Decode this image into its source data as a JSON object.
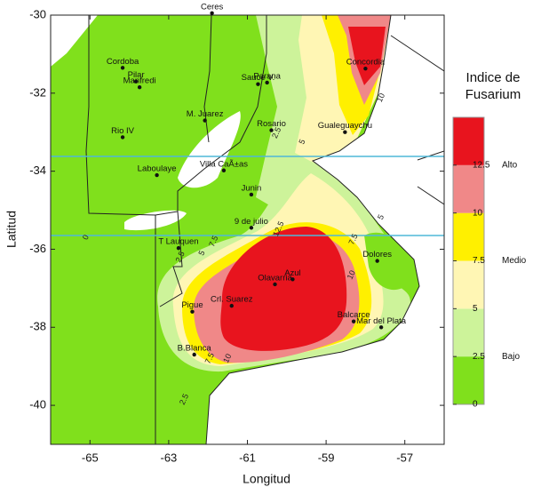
{
  "chart_data": {
    "type": "map",
    "xlabel": "Longitud",
    "ylabel": "Latitud",
    "xlim": [
      -66,
      -56
    ],
    "xticks": [
      -65,
      -63,
      -61,
      -59,
      -57
    ],
    "ylim": [
      -41,
      -30
    ],
    "yticks": [
      -30,
      -32,
      -34,
      -36,
      -38,
      -40
    ],
    "cities": [
      {
        "name": "Ceres",
        "lon": -61.9,
        "lat": -29.95
      },
      {
        "name": "Cordoba",
        "lon": -64.17,
        "lat": -31.35
      },
      {
        "name": "Pilar",
        "lon": -63.83,
        "lat": -31.7
      },
      {
        "name": "Manfredi",
        "lon": -63.74,
        "lat": -31.85
      },
      {
        "name": "Rio IV",
        "lon": -64.17,
        "lat": -33.13
      },
      {
        "name": "M. Juarez",
        "lon": -62.08,
        "lat": -32.7
      },
      {
        "name": "Sauce V.",
        "lon": -60.73,
        "lat": -31.77
      },
      {
        "name": "Parana",
        "lon": -60.5,
        "lat": -31.73
      },
      {
        "name": "Rosario",
        "lon": -60.39,
        "lat": -32.95
      },
      {
        "name": "Concordia",
        "lon": -58.0,
        "lat": -31.37
      },
      {
        "name": "Gualeguaychu",
        "lon": -58.52,
        "lat": -33.0
      },
      {
        "name": "Villa CaÃ±as",
        "lon": -61.6,
        "lat": -33.98
      },
      {
        "name": "Laboulaye",
        "lon": -63.3,
        "lat": -34.1
      },
      {
        "name": "Junin",
        "lon": -60.9,
        "lat": -34.6
      },
      {
        "name": "9 de julio",
        "lon": -60.9,
        "lat": -35.45
      },
      {
        "name": "T Lauquen",
        "lon": -62.75,
        "lat": -35.97
      },
      {
        "name": "Dolores",
        "lon": -57.7,
        "lat": -36.3
      },
      {
        "name": "Azul",
        "lon": -59.85,
        "lat": -36.77
      },
      {
        "name": "Olavarria",
        "lon": -60.3,
        "lat": -36.9
      },
      {
        "name": "Pigue",
        "lon": -62.4,
        "lat": -37.6
      },
      {
        "name": "Crl. Suarez",
        "lon": -61.4,
        "lat": -37.45
      },
      {
        "name": "Balcarce",
        "lon": -58.3,
        "lat": -37.85
      },
      {
        "name": "Mar del Plata",
        "lon": -57.6,
        "lat": -38.0
      },
      {
        "name": "B.Blanca",
        "lon": -62.35,
        "lat": -38.7
      }
    ],
    "contour_labels": [
      {
        "value": 2.5,
        "lon": -60.25,
        "lat": -33.02
      },
      {
        "value": 5,
        "lon": -59.6,
        "lat": -33.25
      },
      {
        "value": 10,
        "lon": -57.6,
        "lat": -32.12
      },
      {
        "value": 5,
        "lon": -57.6,
        "lat": -35.18
      },
      {
        "value": 7.5,
        "lon": -58.3,
        "lat": -35.75
      },
      {
        "value": 10,
        "lon": -58.35,
        "lat": -36.66
      },
      {
        "value": 12.5,
        "lon": -60.2,
        "lat": -35.48
      },
      {
        "value": 7.5,
        "lon": -61.85,
        "lat": -35.8
      },
      {
        "value": 5,
        "lon": -62.15,
        "lat": -36.1
      },
      {
        "value": 2.5,
        "lon": -62.7,
        "lat": -36.2
      },
      {
        "value": 0,
        "lon": -65.1,
        "lat": -35.7
      },
      {
        "value": 7.5,
        "lon": -61.95,
        "lat": -38.8
      },
      {
        "value": 10,
        "lon": -61.5,
        "lat": -38.8
      },
      {
        "value": 2.5,
        "lon": -62.6,
        "lat": -39.85
      }
    ],
    "legend": {
      "title": [
        "Indice de",
        "Fusarium"
      ],
      "lim": [
        0,
        15
      ],
      "ticks": [
        0,
        2.5,
        5,
        7.5,
        10,
        12.5
      ],
      "bands": [
        {
          "from": 0,
          "to": 2.5,
          "color": "#80e01c"
        },
        {
          "from": 2.5,
          "to": 5,
          "color": "#cdf39a"
        },
        {
          "from": 5,
          "to": 7.5,
          "color": "#fff6b4"
        },
        {
          "from": 7.5,
          "to": 10,
          "color": "#fff000"
        },
        {
          "from": 10,
          "to": 12.5,
          "color": "#f08888"
        },
        {
          "from": 12.5,
          "to": 15,
          "color": "#e8141e"
        }
      ],
      "classes": [
        {
          "name": "Bajo",
          "value": 2.5
        },
        {
          "name": "Medio",
          "value": 7.5
        },
        {
          "name": "Alto",
          "value": 12.5
        }
      ]
    }
  }
}
